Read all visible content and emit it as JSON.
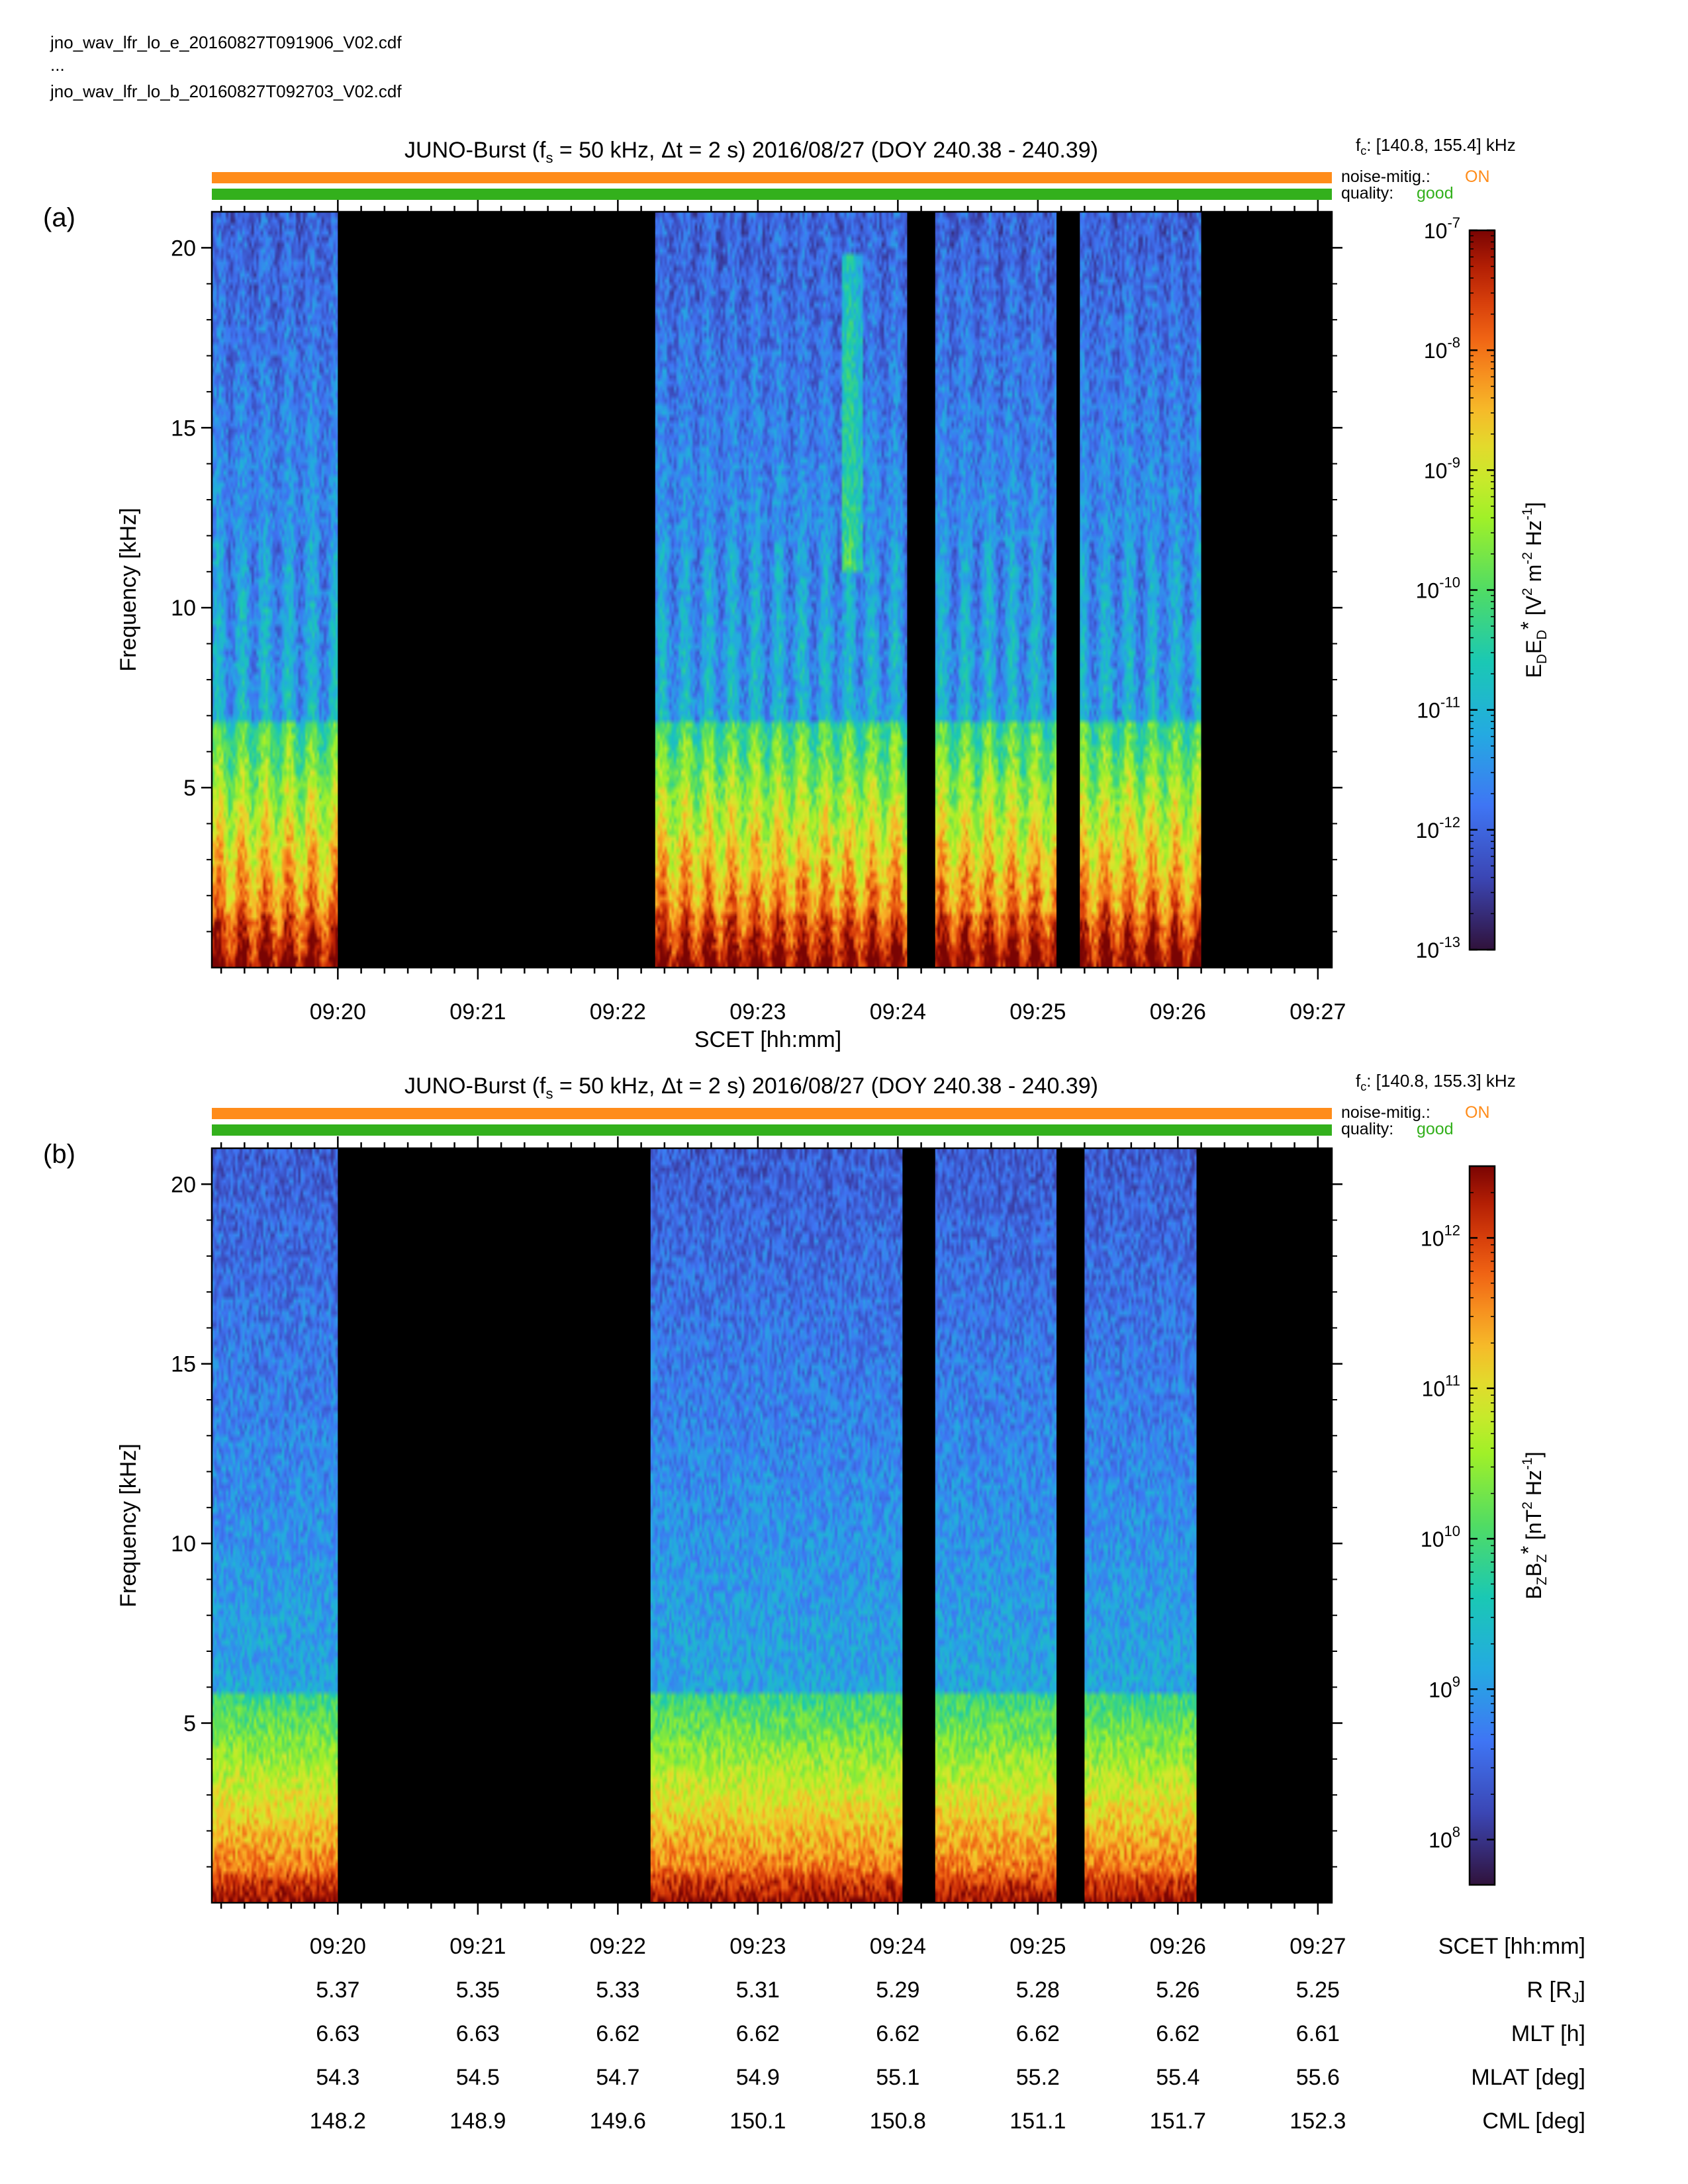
{
  "header": {
    "files": [
      "jno_wav_lfr_lo_e_20160827T091906_V02.cdf",
      "...",
      "jno_wav_lfr_lo_b_20160827T092703_V02.cdf"
    ]
  },
  "colors": {
    "noise_bar": "#ff8c1a",
    "quality_bar": "#33b01c",
    "noise_on": "#ff8c1a",
    "quality_good": "#33b01c",
    "gap": "#000000"
  },
  "chart_data": [
    {
      "type": "heatmap",
      "panel_label": "(a)",
      "title": {
        "instrument": "JUNO-Burst",
        "fs_value": "50",
        "fs_unit": "kHz",
        "dt_value": "2",
        "dt_unit": "s",
        "date": "2016/08/27",
        "doy": "(DOY 240.38 - 240.39)"
      },
      "fc_range": "[140.8, 155.4] kHz",
      "noise_mitig_label": "noise-mitig.:",
      "noise_mitig_value": "ON",
      "quality_label": "quality:",
      "quality_value": "good",
      "ylabel": "Frequency [kHz]",
      "ylim": [
        0,
        21
      ],
      "yticks": [
        5,
        10,
        15,
        20
      ],
      "xlabel": "SCET [hh:mm]",
      "xlim": [
        "09:19:06",
        "09:27:06"
      ],
      "xticks": [
        "09:20",
        "09:21",
        "09:22",
        "09:23",
        "09:24",
        "09:25",
        "09:26",
        "09:27"
      ],
      "grid": false,
      "data_intervals": [
        [
          "09:19:06",
          "09:20:00"
        ],
        [
          "09:22:16",
          "09:24:04"
        ],
        [
          "09:24:16",
          "09:25:08"
        ],
        [
          "09:25:18",
          "09:26:10"
        ]
      ],
      "colorbar": {
        "scale": "log",
        "range": [
          1e-13,
          1e-07
        ],
        "tick_exponents": [
          -7,
          -8,
          -9,
          -10,
          -11,
          -12,
          -13
        ],
        "label": "EDED* [V2 m-2 Hz-1]"
      },
      "features": {
        "low_freq_band_khz": [
          0,
          7
        ],
        "intense_below_khz": 1.5,
        "emission_burst": {
          "time": "09:23:40",
          "freq_khz": [
            11,
            20
          ]
        },
        "modulation_period_s": 10
      }
    },
    {
      "type": "heatmap",
      "panel_label": "(b)",
      "title": {
        "instrument": "JUNO-Burst",
        "fs_value": "50",
        "fs_unit": "kHz",
        "dt_value": "2",
        "dt_unit": "s",
        "date": "2016/08/27",
        "doy": "(DOY 240.38 - 240.39)"
      },
      "fc_range": "[140.8, 155.3] kHz",
      "noise_mitig_label": "noise-mitig.:",
      "noise_mitig_value": "ON",
      "quality_label": "quality:",
      "quality_value": "good",
      "ylabel": "Frequency [kHz]",
      "ylim": [
        0,
        21
      ],
      "yticks": [
        5,
        10,
        15,
        20
      ],
      "xlabel": "SCET [hh:mm]",
      "xlim": [
        "09:19:06",
        "09:27:06"
      ],
      "xticks": [
        "09:20",
        "09:21",
        "09:22",
        "09:23",
        "09:24",
        "09:25",
        "09:26",
        "09:27"
      ],
      "grid": false,
      "data_intervals": [
        [
          "09:19:06",
          "09:20:00"
        ],
        [
          "09:22:14",
          "09:24:02"
        ],
        [
          "09:24:16",
          "09:25:08"
        ],
        [
          "09:25:20",
          "09:26:08"
        ]
      ],
      "colorbar": {
        "scale": "log",
        "range": [
          50000000.0,
          3000000000000.0
        ],
        "tick_exponents": [
          12,
          11,
          10,
          9,
          8
        ],
        "label": "BZBZ* [nT2 Hz-1]"
      },
      "features": {
        "low_freq_band_khz": [
          0,
          6
        ],
        "intense_below_khz": 1.0
      }
    }
  ],
  "ephemeris": {
    "columns": [
      "09:20",
      "09:21",
      "09:22",
      "09:23",
      "09:24",
      "09:25",
      "09:26",
      "09:27"
    ],
    "rows": [
      {
        "label": "SCET [hh:mm]",
        "values": [
          "09:20",
          "09:21",
          "09:22",
          "09:23",
          "09:24",
          "09:25",
          "09:26",
          "09:27"
        ]
      },
      {
        "label": "R [RJ]",
        "values": [
          "5.37",
          "5.35",
          "5.33",
          "5.31",
          "5.29",
          "5.28",
          "5.26",
          "5.25"
        ]
      },
      {
        "label": "MLT [h]",
        "values": [
          "6.63",
          "6.63",
          "6.62",
          "6.62",
          "6.62",
          "6.62",
          "6.62",
          "6.61"
        ]
      },
      {
        "label": "MLAT [deg]",
        "values": [
          "54.3",
          "54.5",
          "54.7",
          "54.9",
          "55.1",
          "55.2",
          "55.4",
          "55.6"
        ]
      },
      {
        "label": "CML [deg]",
        "values": [
          "148.2",
          "148.9",
          "149.6",
          "150.1",
          "150.8",
          "151.1",
          "151.7",
          "152.3"
        ]
      }
    ]
  }
}
